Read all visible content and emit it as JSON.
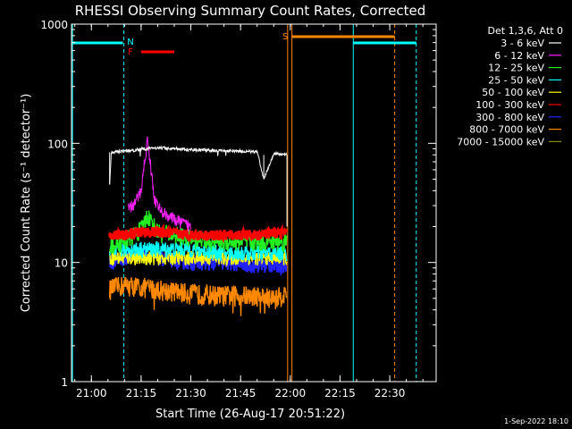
{
  "chart_data": {
    "type": "line",
    "title": "RHESSI Observing Summary Count Rates, Corrected",
    "xlabel": "Start Time (26-Aug-17 20:51:22)",
    "ylabel": "Corrected Count Rate (s⁻¹ detector⁻¹)",
    "yscale": "log",
    "ylim": [
      1,
      1000
    ],
    "xlim_minutes": [
      -6,
      104
    ],
    "x_ticks": [
      {
        "label": "21:00",
        "minutes": 0
      },
      {
        "label": "21:15",
        "minutes": 15
      },
      {
        "label": "21:30",
        "minutes": 30
      },
      {
        "label": "21:45",
        "minutes": 45
      },
      {
        "label": "22:00",
        "minutes": 60
      },
      {
        "label": "22:15",
        "minutes": 75
      },
      {
        "label": "22:30",
        "minutes": 90
      }
    ],
    "y_ticks": [
      {
        "label": "1",
        "value": 1
      },
      {
        "label": "10",
        "value": 10
      },
      {
        "label": "100",
        "value": 100
      },
      {
        "label": "1000",
        "value": 1000
      }
    ],
    "legend_title": "Det 1,3,6, Att 0",
    "legend_position": "right",
    "series": [
      {
        "name": "3 - 6 keV",
        "color": "#ffffff",
        "x": [
          5.5,
          6,
          10,
          20,
          30,
          40,
          50,
          52,
          55,
          59
        ],
        "y": [
          45,
          84,
          86,
          92,
          88,
          87,
          85,
          50,
          82,
          80
        ]
      },
      {
        "name": "6 - 12 keV",
        "color": "#ff22ff",
        "x": [
          11,
          13,
          15,
          16,
          17,
          18,
          19,
          21,
          25,
          30
        ],
        "y": [
          28,
          31,
          40,
          70,
          110,
          60,
          34,
          27,
          23,
          20
        ]
      },
      {
        "name": "12 - 25 keV",
        "color": "#22ee22",
        "x": [
          5.5,
          10,
          15,
          16,
          17,
          20,
          30,
          40,
          50,
          59
        ],
        "y": [
          14,
          15,
          19,
          22,
          25,
          18,
          16,
          15,
          15,
          15
        ]
      },
      {
        "name": "25 - 50 keV",
        "color": "#00ffff",
        "x": [
          5.5,
          10,
          20,
          30,
          40,
          50,
          59
        ],
        "y": [
          12,
          13,
          13,
          13,
          12,
          12,
          12
        ]
      },
      {
        "name": "50 - 100 keV",
        "color": "#ffff00",
        "x": [
          5.5,
          10,
          20,
          30,
          40,
          50,
          59
        ],
        "y": [
          11,
          11,
          11,
          11,
          11,
          11,
          11
        ]
      },
      {
        "name": "100 - 300 keV",
        "color": "#ff0000",
        "x": [
          5.5,
          10,
          15,
          20,
          30,
          40,
          50,
          59
        ],
        "y": [
          17,
          17,
          18,
          18,
          17,
          17,
          17,
          18
        ]
      },
      {
        "name": "300 - 800 keV",
        "color": "#2222ff",
        "x": [
          5.5,
          10,
          15,
          20,
          30,
          40,
          50,
          59
        ],
        "y": [
          10,
          11,
          12,
          11,
          10,
          10,
          9.5,
          9.5
        ]
      },
      {
        "name": "800 - 7000 keV",
        "color": "#ff8800",
        "x": [
          5.5,
          10,
          20,
          30,
          40,
          50,
          55,
          59
        ],
        "y": [
          6,
          6.5,
          6,
          5.5,
          5.3,
          5.3,
          5,
          5.5
        ]
      },
      {
        "name": "7000 - 15000 keV",
        "color": "#888800",
        "x": [],
        "y": []
      }
    ],
    "annotations": [
      {
        "text": "N",
        "color": "#00ffff"
      },
      {
        "text": "F",
        "color": "#ff0000"
      },
      {
        "text": "S",
        "color": "#ff8800"
      }
    ],
    "timestamp": "1-Sep-2022 18:10"
  }
}
